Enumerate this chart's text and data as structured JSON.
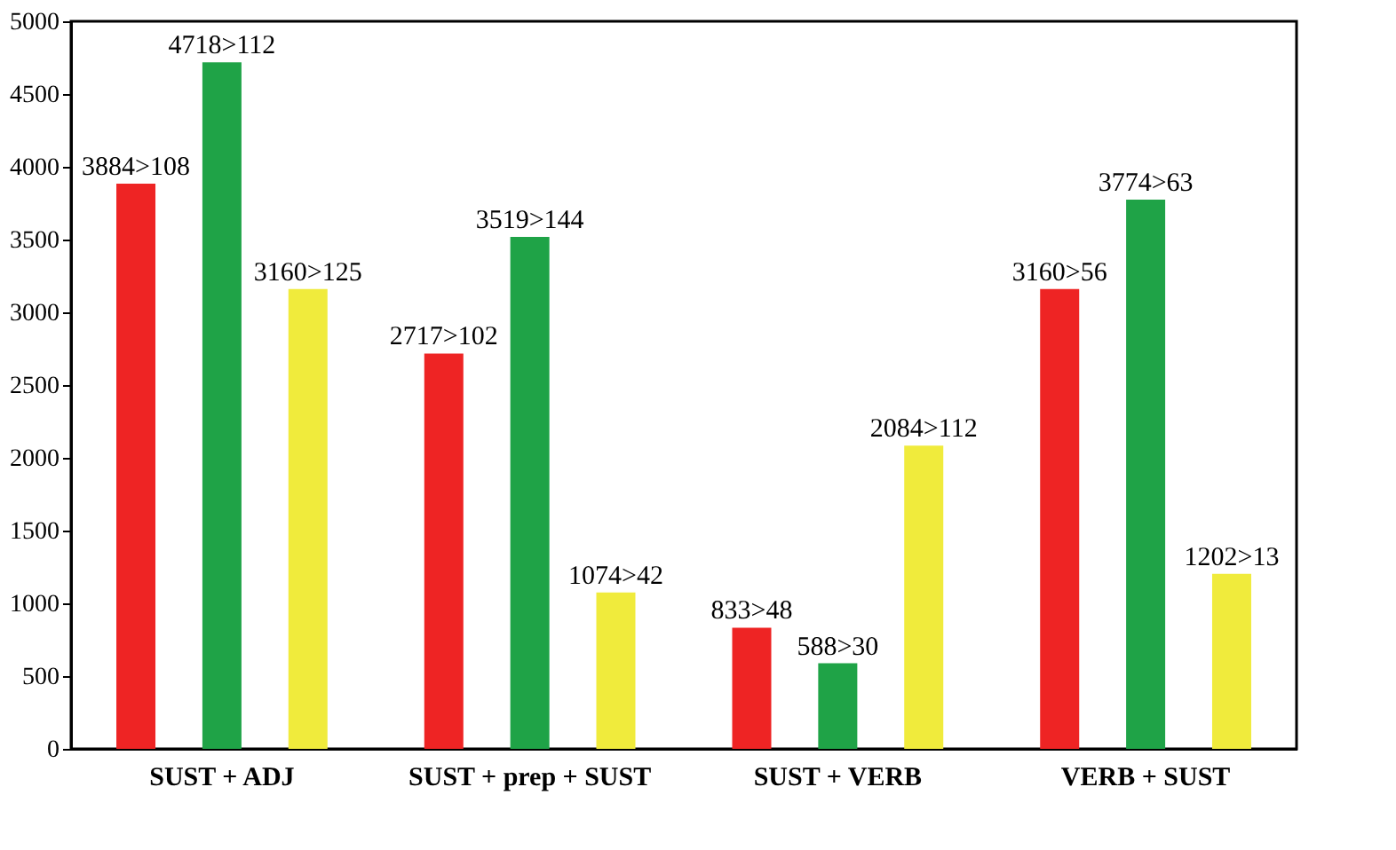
{
  "chart_data": {
    "type": "bar",
    "categories": [
      "SUST + ADJ",
      "SUST + prep + SUST",
      "SUST + VERB",
      "VERB + SUST"
    ],
    "series": [
      {
        "color": "#ee2424",
        "values": [
          3884,
          2717,
          833,
          3160
        ],
        "value_labels": [
          "3884>108",
          "2717>102",
          "833>48",
          "3160>56"
        ]
      },
      {
        "color": "#1fa347",
        "values": [
          4718,
          3519,
          588,
          3774
        ],
        "value_labels": [
          "4718>112",
          "3519>144",
          "588>30",
          "3774>63"
        ]
      },
      {
        "color": "#f0eb3c",
        "values": [
          3160,
          1074,
          2084,
          1202
        ],
        "value_labels": [
          "3160>125",
          "1074>42",
          "2084>112",
          "1202>13"
        ]
      }
    ],
    "ylim": [
      0,
      5000
    ],
    "yticks": [
      0,
      500,
      1000,
      1500,
      2000,
      2500,
      3000,
      3500,
      4000,
      4500,
      5000
    ],
    "grid": false
  }
}
